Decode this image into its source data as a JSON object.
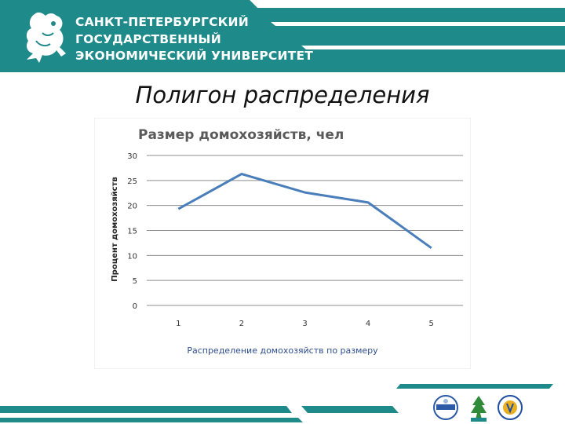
{
  "header": {
    "university_lines": [
      "САНКТ-ПЕТЕРБУРГСКИЙ",
      "ГОСУДАРСТВЕННЫЙ",
      "ЭКОНОМИЧЕСКИЙ УНИВЕРСИТЕТ"
    ]
  },
  "slide": {
    "title": "Полигон распределения",
    "caption": "Распределение домохозяйств по размеру"
  },
  "colors": {
    "brand": "#1f8a8a",
    "line": "#4a7ebb",
    "caption": "#2e4e8f"
  },
  "chart_data": {
    "type": "line",
    "title": "Размер домохозяйств, чел",
    "xlabel": "",
    "ylabel": "Процент домохозяйств",
    "categories": [
      "1",
      "2",
      "3",
      "4",
      "5"
    ],
    "series": [
      {
        "values": [
          19.3,
          26.3,
          22.6,
          20.6,
          11.5
        ]
      }
    ],
    "yticks": [
      "0",
      "5",
      "10",
      "15",
      "20",
      "25",
      "30"
    ],
    "ylim": [
      0,
      30
    ],
    "grid": true,
    "legend": "none"
  },
  "footer": {
    "logos": [
      "partner-logo",
      "partner-logo",
      "partner-logo"
    ]
  }
}
